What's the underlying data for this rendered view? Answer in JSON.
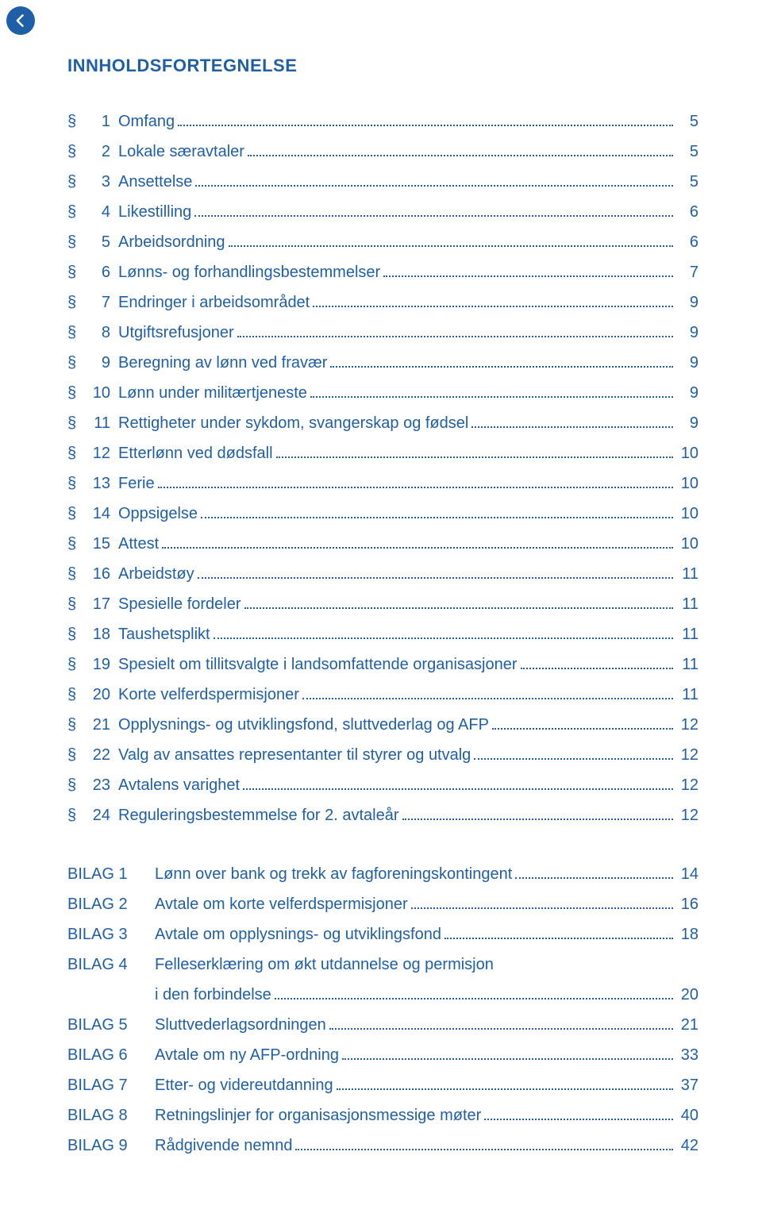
{
  "colors": {
    "accent": "#1f5fa8",
    "background": "#ffffff"
  },
  "typography": {
    "title_fontsize": 22,
    "body_fontsize": 20,
    "font_family": "Verdana"
  },
  "title": "INNHOLDSFORTEGNELSE",
  "sections": [
    {
      "marker": "§",
      "num": "1",
      "label": "Omfang",
      "page": "5"
    },
    {
      "marker": "§",
      "num": "2",
      "label": "Lokale særavtaler",
      "page": "5"
    },
    {
      "marker": "§",
      "num": "3",
      "label": "Ansettelse",
      "page": "5"
    },
    {
      "marker": "§",
      "num": "4",
      "label": "Likestilling",
      "page": "6"
    },
    {
      "marker": "§",
      "num": "5",
      "label": "Arbeidsordning",
      "page": "6"
    },
    {
      "marker": "§",
      "num": "6",
      "label": "Lønns- og forhandlingsbestemmelser",
      "page": "7"
    },
    {
      "marker": "§",
      "num": "7",
      "label": "Endringer i arbeidsområdet",
      "page": "9"
    },
    {
      "marker": "§",
      "num": "8",
      "label": "Utgiftsrefusjoner",
      "page": "9"
    },
    {
      "marker": "§",
      "num": "9",
      "label": "Beregning av lønn ved fravær",
      "page": "9"
    },
    {
      "marker": "§",
      "num": "10",
      "label": "Lønn under militærtjeneste",
      "page": "9"
    },
    {
      "marker": "§",
      "num": "11",
      "label": "Rettigheter under sykdom, svangerskap og fødsel",
      "page": "9"
    },
    {
      "marker": "§",
      "num": "12",
      "label": "Etterlønn ved dødsfall",
      "page": "10"
    },
    {
      "marker": "§",
      "num": "13",
      "label": "Ferie",
      "page": "10"
    },
    {
      "marker": "§",
      "num": "14",
      "label": "Oppsigelse",
      "page": "10"
    },
    {
      "marker": "§",
      "num": "15",
      "label": "Attest",
      "page": "10"
    },
    {
      "marker": "§",
      "num": "16",
      "label": "Arbeidstøy",
      "page": "11"
    },
    {
      "marker": "§",
      "num": "17",
      "label": "Spesielle fordeler",
      "page": "11"
    },
    {
      "marker": "§",
      "num": "18",
      "label": "Taushetsplikt",
      "page": "11"
    },
    {
      "marker": "§",
      "num": "19",
      "label": "Spesielt om tillitsvalgte i landsomfattende organisasjoner",
      "page": "11"
    },
    {
      "marker": "§",
      "num": "20",
      "label": "Korte velferdspermisjoner",
      "page": "11"
    },
    {
      "marker": "§",
      "num": "21",
      "label": "Opplysnings- og utviklingsfond, sluttvederlag og AFP",
      "page": "12"
    },
    {
      "marker": "§",
      "num": "22",
      "label": "Valg av ansattes representanter til styrer og utvalg",
      "page": "12"
    },
    {
      "marker": "§",
      "num": "23",
      "label": "Avtalens varighet",
      "page": "12"
    },
    {
      "marker": "§",
      "num": "24",
      "label": "Reguleringsbestemmelse for 2. avtaleår",
      "page": "12"
    }
  ],
  "bilag": [
    {
      "marker": "BILAG 1",
      "label": "Lønn over bank og trekk av fagforeningskontingent",
      "page": "14"
    },
    {
      "marker": "BILAG 2",
      "label": "Avtale om korte velferdspermisjoner",
      "page": "16"
    },
    {
      "marker": "BILAG 3",
      "label": "Avtale om opplysnings- og utviklingsfond",
      "page": "18"
    },
    {
      "marker": "BILAG 4",
      "label_line1": "Felleserklæring om økt utdannelse og permisjon",
      "label_line2": "i den forbindelse",
      "page": "20"
    },
    {
      "marker": "BILAG 5",
      "label": "Sluttvederlagsordningen",
      "page": "21"
    },
    {
      "marker": "BILAG 6",
      "label": "Avtale om ny AFP-ordning",
      "page": "33"
    },
    {
      "marker": "BILAG 7",
      "label": "Etter- og videreutdanning",
      "page": "37"
    },
    {
      "marker": "BILAG 8",
      "label": "Retningslinjer for organisasjonsmessige møter",
      "page": "40"
    },
    {
      "marker": "BILAG 9",
      "label": "Rådgivende nemnd",
      "page": "42"
    }
  ]
}
